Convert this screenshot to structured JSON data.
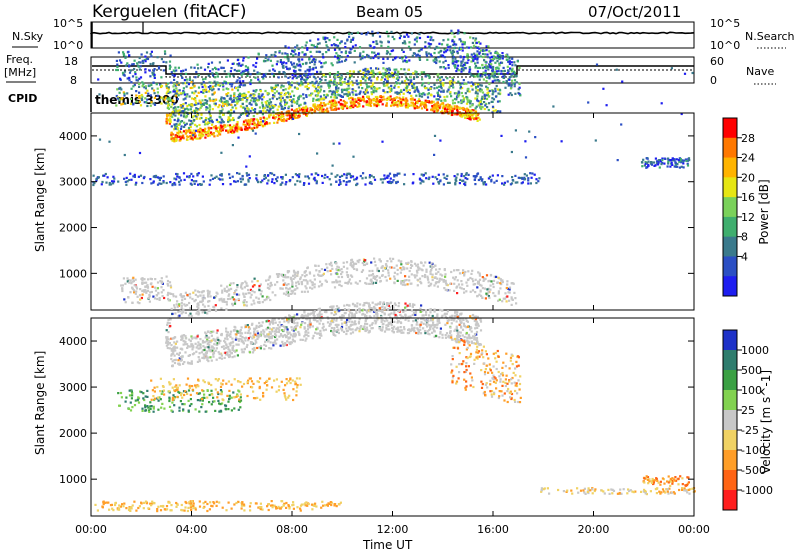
{
  "header": {
    "station": "Kerguelen (fitACF)",
    "beam": "Beam 05",
    "date": "07/Oct/2011"
  },
  "noise_panel": {
    "left_label": "N.Sky",
    "right_label": "N.Search",
    "left_ticks": [
      "10^5",
      "10^0"
    ],
    "right_ticks": [
      "10^5",
      "10^0"
    ]
  },
  "freq_panel": {
    "left_label_1": "Freq.",
    "left_label_2": "[MHz]",
    "right_label": "Nave",
    "left_ticks": [
      "18",
      "8"
    ],
    "right_ticks": [
      "60",
      "0"
    ]
  },
  "cpid": {
    "label": "CPID",
    "value": "themis 3300"
  },
  "chart_data": [
    {
      "type": "heatmap",
      "ylabel": "Slant Range [km]",
      "y_ticks": [
        "4000",
        "3000",
        "2000",
        "1000"
      ],
      "ylim": [
        200,
        4500
      ],
      "colorbar_label": "Power [dB]",
      "colorbar_ticks": [
        "28",
        "24",
        "20",
        "16",
        "12",
        "8",
        "4"
      ],
      "colorbar_colors": [
        "#ff0000",
        "#ff7800",
        "#ffb400",
        "#e6e614",
        "#7ad15a",
        "#3fae6e",
        "#3a7a8c",
        "#2b4fc4",
        "#1e1ef0"
      ]
    },
    {
      "type": "heatmap",
      "ylabel": "Slant Range [km]",
      "y_ticks": [
        "4000",
        "3000",
        "2000",
        "1000"
      ],
      "ylim": [
        200,
        4500
      ],
      "xlabel": "Time UT",
      "x_ticks": [
        "00:00",
        "04:00",
        "08:00",
        "12:00",
        "16:00",
        "20:00",
        "00:00"
      ],
      "colorbar_label": "Velocity [m s^-1]",
      "colorbar_ticks": [
        "1000",
        "500",
        "100",
        "25",
        "-25",
        "-100",
        "-500",
        "-1000"
      ],
      "colorbar_colors": [
        "#1e32c8",
        "#2f7d6e",
        "#3aa043",
        "#82d250",
        "#c8c8c8",
        "#f0d264",
        "#ff9e28",
        "#ff6414",
        "#ff1e1e"
      ]
    }
  ]
}
